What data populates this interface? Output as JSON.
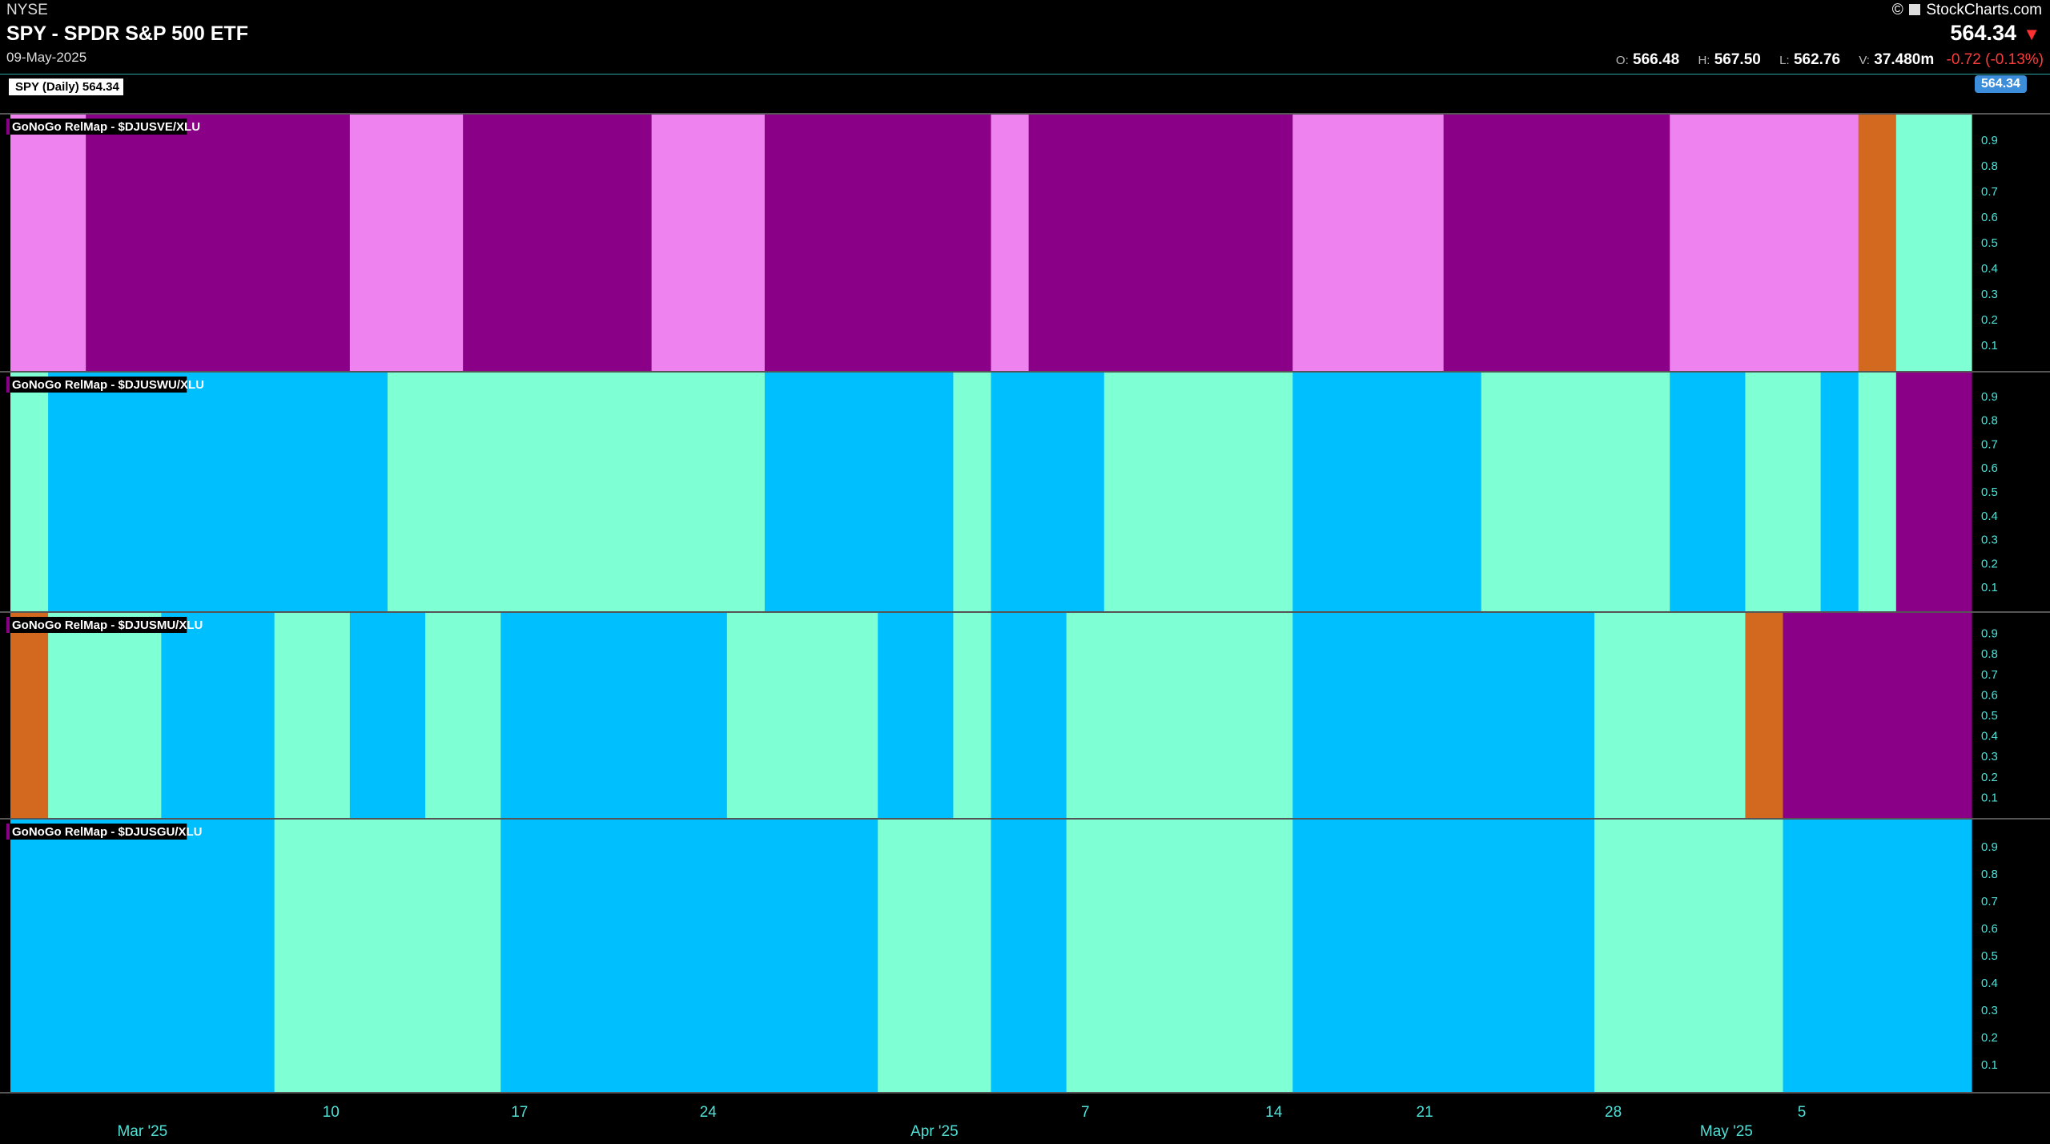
{
  "header": {
    "exchange": "NYSE",
    "title": "SPY - SPDR S&P 500 ETF",
    "date": "09-May-2025",
    "brand": "StockCharts.com",
    "last_price": "564.34",
    "ohlc": {
      "o_label": "O:",
      "o": "566.48",
      "h_label": "H:",
      "h": "567.50",
      "l_label": "L:",
      "l": "562.76",
      "v_label": "V:",
      "v": "37.480m",
      "change": "-0.72 (-0.13%)"
    },
    "main_label": "SPY (Daily) 564.34",
    "price_tag": "564.34"
  },
  "colors": {
    "purple": "#8a0087",
    "pink": "#ee82ee",
    "blue": "#00bfff",
    "aqua": "#7fffd4",
    "orange": "#d2691e"
  },
  "chart_data": {
    "type": "heatmap",
    "num_days": 52,
    "y_ticks": [
      "0.9",
      "0.8",
      "0.7",
      "0.6",
      "0.5",
      "0.4",
      "0.3",
      "0.2",
      "0.1"
    ],
    "x_ticks": [
      {
        "day": 8,
        "label": "10"
      },
      {
        "day": 13,
        "label": "17"
      },
      {
        "day": 18,
        "label": "24"
      },
      {
        "day": 28,
        "label": "7"
      },
      {
        "day": 33,
        "label": "14"
      },
      {
        "day": 37,
        "label": "21"
      },
      {
        "day": 42,
        "label": "28"
      },
      {
        "day": 47,
        "label": "5"
      }
    ],
    "month_labels": [
      {
        "day": 3,
        "label": "Mar '25"
      },
      {
        "day": 24,
        "label": "Apr '25"
      },
      {
        "day": 45,
        "label": "May '25"
      }
    ],
    "panels": [
      {
        "name": "GoNoGo RelMap - $DJUSVE/XLU",
        "segments": [
          [
            0,
            2,
            "pink"
          ],
          [
            2,
            9,
            "purple"
          ],
          [
            9,
            12,
            "pink"
          ],
          [
            12,
            17,
            "purple"
          ],
          [
            17,
            20,
            "pink"
          ],
          [
            20,
            26,
            "purple"
          ],
          [
            26,
            27,
            "pink"
          ],
          [
            27,
            34,
            "purple"
          ],
          [
            34,
            38,
            "pink"
          ],
          [
            38,
            44,
            "purple"
          ],
          [
            44,
            49,
            "pink"
          ],
          [
            49,
            50,
            "orange"
          ],
          [
            50,
            52,
            "aqua"
          ]
        ]
      },
      {
        "name": "GoNoGo RelMap - $DJUSWU/XLU",
        "segments": [
          [
            0,
            1,
            "aqua"
          ],
          [
            1,
            10,
            "blue"
          ],
          [
            10,
            20,
            "aqua"
          ],
          [
            20,
            25,
            "blue"
          ],
          [
            25,
            26,
            "aqua"
          ],
          [
            26,
            29,
            "blue"
          ],
          [
            29,
            34,
            "aqua"
          ],
          [
            34,
            39,
            "blue"
          ],
          [
            39,
            44,
            "aqua"
          ],
          [
            44,
            46,
            "blue"
          ],
          [
            46,
            48,
            "aqua"
          ],
          [
            48,
            49,
            "blue"
          ],
          [
            49,
            50,
            "aqua"
          ],
          [
            50,
            52,
            "purple"
          ]
        ]
      },
      {
        "name": "GoNoGo RelMap - $DJUSMU/XLU",
        "segments": [
          [
            0,
            1,
            "orange"
          ],
          [
            1,
            4,
            "aqua"
          ],
          [
            4,
            7,
            "blue"
          ],
          [
            7,
            9,
            "aqua"
          ],
          [
            9,
            11,
            "blue"
          ],
          [
            11,
            13,
            "aqua"
          ],
          [
            13,
            19,
            "blue"
          ],
          [
            19,
            23,
            "aqua"
          ],
          [
            23,
            25,
            "blue"
          ],
          [
            25,
            26,
            "aqua"
          ],
          [
            26,
            28,
            "blue"
          ],
          [
            28,
            34,
            "aqua"
          ],
          [
            34,
            42,
            "blue"
          ],
          [
            42,
            46,
            "aqua"
          ],
          [
            46,
            47,
            "orange"
          ],
          [
            47,
            52,
            "purple"
          ]
        ]
      },
      {
        "name": "GoNoGo RelMap - $DJUSGU/XLU",
        "segments": [
          [
            0,
            7,
            "blue"
          ],
          [
            7,
            13,
            "aqua"
          ],
          [
            13,
            23,
            "blue"
          ],
          [
            23,
            26,
            "aqua"
          ],
          [
            26,
            28,
            "blue"
          ],
          [
            28,
            34,
            "aqua"
          ],
          [
            34,
            42,
            "blue"
          ],
          [
            42,
            47,
            "aqua"
          ],
          [
            47,
            52,
            "blue"
          ]
        ]
      }
    ]
  }
}
